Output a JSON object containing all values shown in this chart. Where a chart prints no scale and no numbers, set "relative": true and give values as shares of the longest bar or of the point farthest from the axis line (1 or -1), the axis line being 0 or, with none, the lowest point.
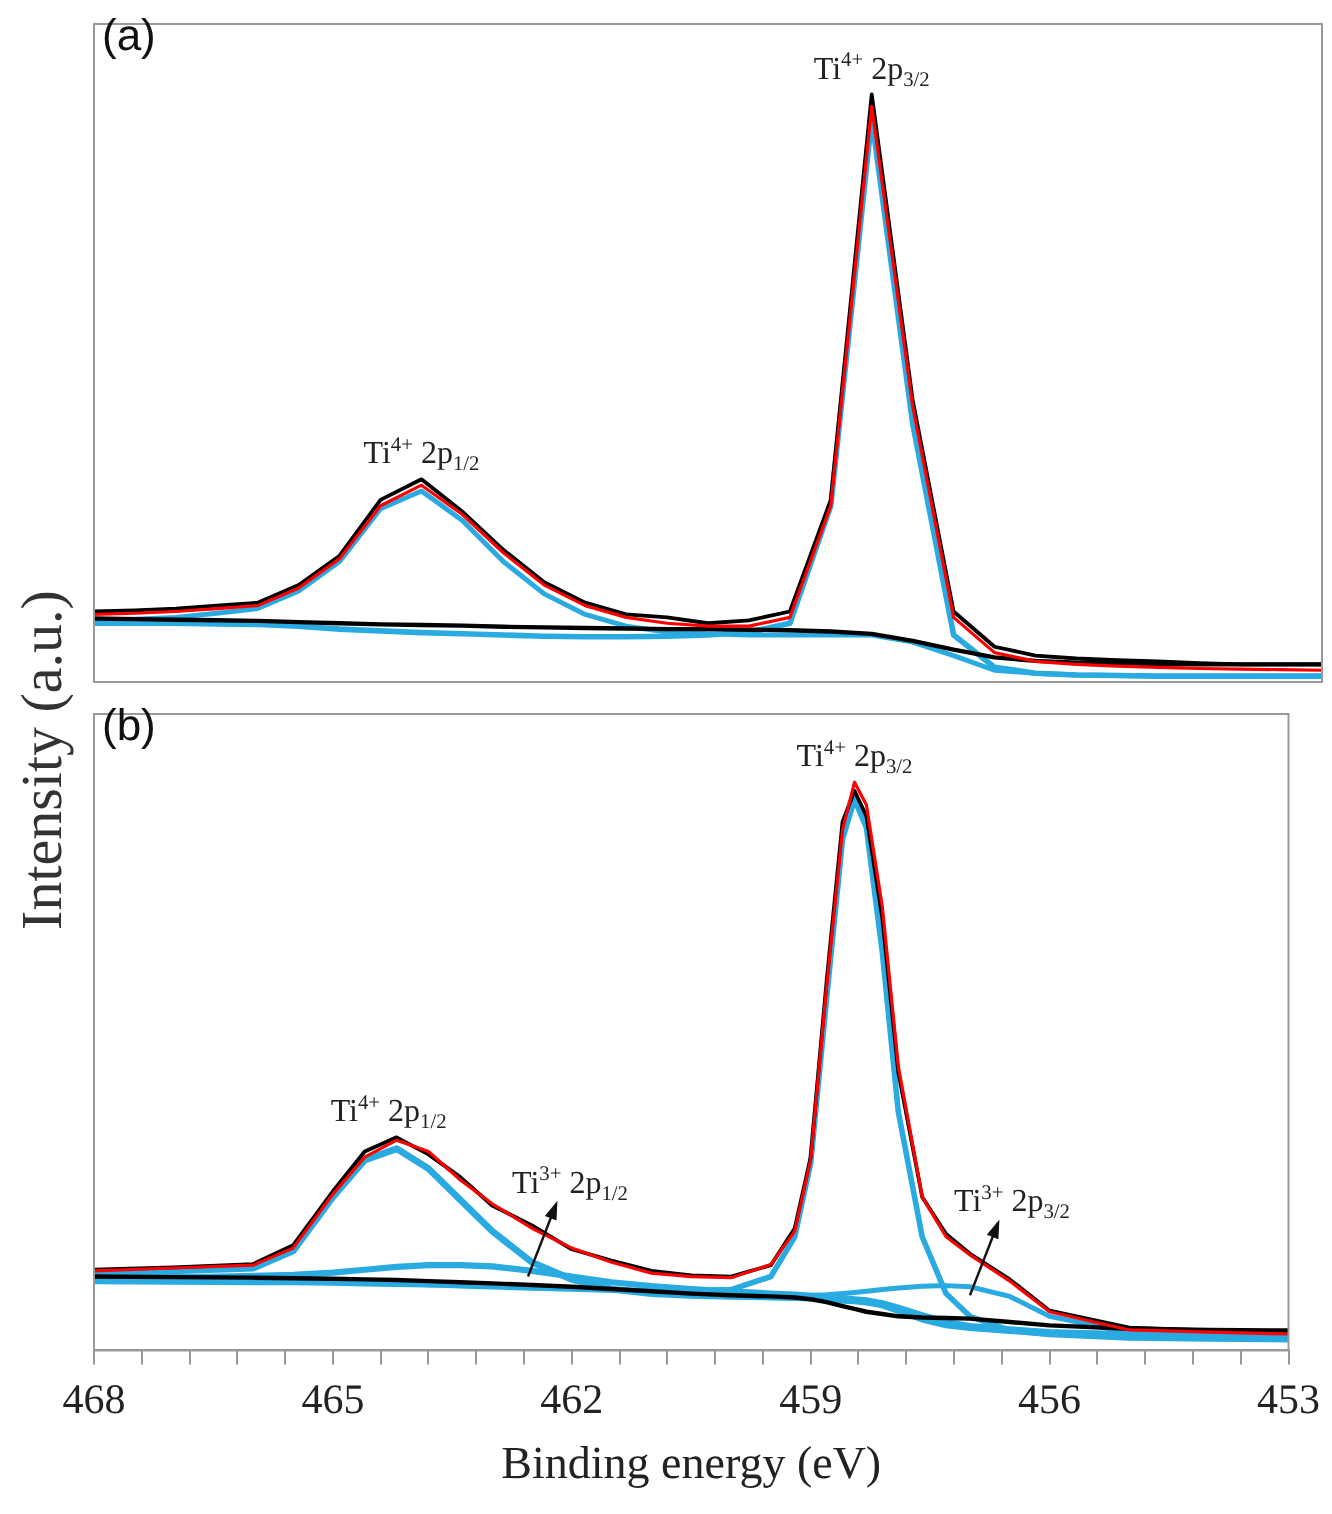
{
  "chart_data": [
    {
      "type": "line",
      "relative": true,
      "ylabel": "Intensity (a.u.)",
      "tick_labels": false,
      "grid": false,
      "legend": false,
      "marker": "none",
      "line_style": "solid",
      "categories": [
        null,
        null,
        null,
        null,
        null,
        null,
        null,
        null,
        null,
        null,
        null,
        null,
        null,
        null,
        null,
        null,
        null,
        null,
        null,
        null,
        null,
        null,
        null,
        null,
        null,
        null,
        null,
        null,
        null,
        null,
        null
      ],
      "series": [
        {
          "color": "#29abe2",
          "values": [
            0.1,
            0.1,
            0.1,
            0.099,
            0.098,
            0.095,
            0.09,
            0.087,
            0.084,
            0.082,
            0.08,
            0.078,
            0.077,
            0.077,
            0.078,
            0.08,
            0.085,
            0.1,
            0.3,
            0.96,
            0.44,
            0.08,
            0.025,
            0.015,
            0.012,
            0.011,
            0.01,
            0.01,
            0.01,
            0.01,
            0.01
          ]
        },
        {
          "color": "#29abe2",
          "values": [
            0.105,
            0.107,
            0.11,
            0.117,
            0.125,
            0.155,
            0.205,
            0.295,
            0.325,
            0.275,
            0.205,
            0.15,
            0.115,
            0.095,
            0.085,
            0.082,
            0.08,
            0.08,
            0.08,
            0.08,
            0.068,
            0.045,
            0.02,
            0.015,
            0.012,
            0.011,
            0.01,
            0.01,
            0.01,
            0.01,
            0.01
          ]
        },
        {
          "color": "#000000",
          "values": [
            0.108,
            0.107,
            0.106,
            0.105,
            0.104,
            0.102,
            0.1,
            0.098,
            0.097,
            0.096,
            0.094,
            0.093,
            0.092,
            0.091,
            0.09,
            0.09,
            0.089,
            0.088,
            0.086,
            0.082,
            0.07,
            0.055,
            0.042,
            0.036,
            0.033,
            0.032,
            0.03,
            0.03,
            0.03,
            0.03,
            0.03
          ]
        },
        {
          "color": "#000000",
          "values": [
            0.12,
            0.122,
            0.125,
            0.13,
            0.135,
            0.165,
            0.215,
            0.31,
            0.345,
            0.29,
            0.225,
            0.17,
            0.135,
            0.115,
            0.11,
            0.1,
            0.105,
            0.12,
            0.31,
            1.0,
            0.48,
            0.12,
            0.06,
            0.045,
            0.04,
            0.037,
            0.035,
            0.032,
            0.03,
            0.03,
            0.03
          ]
        },
        {
          "color": "#ff0000",
          "values": [
            0.115,
            0.117,
            0.12,
            0.125,
            0.13,
            0.16,
            0.21,
            0.3,
            0.335,
            0.285,
            0.22,
            0.165,
            0.13,
            0.11,
            0.1,
            0.095,
            0.095,
            0.11,
            0.3,
            0.98,
            0.47,
            0.11,
            0.05,
            0.035,
            0.03,
            0.027,
            0.025,
            0.023,
            0.022,
            0.021,
            0.02
          ]
        }
      ],
      "annotations": [
        "(a)",
        {
          "text": "Ti$^{4+}$ 2p$_{1/2}$",
          "y": 0.345
        },
        {
          "text": "Ti$^{4+}$ 2p$_{3/2}$",
          "y": 1.0
        }
      ]
    },
    {
      "type": "line",
      "relative": true,
      "xlabel": "Binding energy (eV)",
      "xlim": [
        468,
        453
      ],
      "tick_labels": "x",
      "grid": false,
      "legend": false,
      "marker": "none",
      "line_style": "solid",
      "xticks": [
        468,
        {
          "value": 467.4,
          "label": null
        },
        {
          "value": 466.8,
          "label": null
        },
        {
          "value": 466.2,
          "label": null
        },
        {
          "value": 465.6,
          "label": null
        },
        465,
        {
          "value": 464.4,
          "label": null
        },
        {
          "value": 463.8,
          "label": null
        },
        {
          "value": 463.2,
          "label": null
        },
        {
          "value": 462.6,
          "label": null
        },
        462,
        {
          "value": 461.4,
          "label": null
        },
        {
          "value": 460.8,
          "label": null
        },
        {
          "value": 460.2,
          "label": null
        },
        {
          "value": 459.6,
          "label": null
        },
        459,
        {
          "value": 458.4,
          "label": null
        },
        {
          "value": 457.8,
          "label": null
        },
        {
          "value": 457.2,
          "label": null
        },
        {
          "value": 456.6,
          "label": null
        },
        456,
        {
          "value": 455.4,
          "label": null
        },
        {
          "value": 454.8,
          "label": null
        },
        {
          "value": 454.2,
          "label": null
        },
        {
          "value": 453.6,
          "label": null
        },
        453
      ],
      "x": [
        468,
        467,
        466,
        465.5,
        465,
        464.6,
        464.2,
        463.8,
        463.4,
        463,
        462.5,
        462,
        461.5,
        461,
        460.5,
        460,
        459.5,
        459.2,
        459,
        458.8,
        458.6,
        458.45,
        458.3,
        458.1,
        457.9,
        457.6,
        457.3,
        457,
        456.5,
        456,
        455,
        454,
        453
      ],
      "series": [
        {
          "color": "#29abe2",
          "values": [
            0.135,
            0.14,
            0.145,
            0.175,
            0.27,
            0.335,
            0.355,
            0.32,
            0.265,
            0.21,
            0.155,
            0.125,
            0.108,
            0.1,
            0.097,
            0.095,
            0.094,
            0.093,
            0.092,
            0.09,
            0.088,
            0.087,
            0.085,
            0.08,
            0.07,
            0.055,
            0.045,
            0.04,
            0.035,
            0.03,
            0.028,
            0.027,
            0.026
          ]
        },
        {
          "color": "#29abe2",
          "values": [
            0.126,
            0.128,
            0.131,
            0.133,
            0.137,
            0.142,
            0.147,
            0.15,
            0.15,
            0.148,
            0.14,
            0.13,
            0.12,
            0.113,
            0.108,
            0.104,
            0.1,
            0.098,
            0.096,
            0.094,
            0.092,
            0.09,
            0.088,
            0.083,
            0.075,
            0.062,
            0.05,
            0.043,
            0.037,
            0.032,
            0.028,
            0.025,
            0.023
          ]
        },
        {
          "color": "#29abe2",
          "values": [
            0.133,
            0.13,
            0.126,
            0.124,
            0.122,
            0.12,
            0.118,
            0.116,
            0.114,
            0.112,
            0.11,
            0.108,
            0.106,
            0.105,
            0.105,
            0.107,
            0.13,
            0.2,
            0.33,
            0.62,
            0.9,
            0.97,
            0.92,
            0.7,
            0.42,
            0.2,
            0.1,
            0.06,
            0.035,
            0.028,
            0.022,
            0.02,
            0.019
          ]
        },
        {
          "color": "#29abe2",
          "values": [
            0.121,
            0.12,
            0.119,
            0.119,
            0.118,
            0.117,
            0.116,
            0.115,
            0.114,
            0.113,
            0.111,
            0.109,
            0.107,
            0.104,
            0.103,
            0.101,
            0.098,
            0.097,
            0.097,
            0.098,
            0.1,
            0.102,
            0.104,
            0.107,
            0.11,
            0.113,
            0.114,
            0.112,
            0.095,
            0.06,
            0.031,
            0.03,
            0.031
          ]
        },
        {
          "color": "#000000",
          "values": [
            0.13,
            0.129,
            0.128,
            0.127,
            0.126,
            0.125,
            0.124,
            0.122,
            0.12,
            0.118,
            0.115,
            0.112,
            0.108,
            0.104,
            0.1,
            0.097,
            0.095,
            0.093,
            0.09,
            0.085,
            0.078,
            0.073,
            0.068,
            0.064,
            0.06,
            0.058,
            0.057,
            0.056,
            0.05,
            0.044,
            0.038,
            0.036,
            0.035
          ]
        },
        {
          "color": "#000000",
          "values": [
            0.142,
            0.146,
            0.152,
            0.185,
            0.28,
            0.35,
            0.375,
            0.345,
            0.305,
            0.255,
            0.22,
            0.178,
            0.158,
            0.14,
            0.132,
            0.13,
            0.15,
            0.215,
            0.34,
            0.65,
            0.93,
            0.985,
            0.94,
            0.76,
            0.49,
            0.27,
            0.205,
            0.17,
            0.125,
            0.07,
            0.04,
            0.035,
            0.033
          ]
        },
        {
          "color": "#ff0000",
          "values": [
            0.14,
            0.145,
            0.15,
            0.18,
            0.275,
            0.34,
            0.37,
            0.35,
            0.3,
            0.258,
            0.215,
            0.18,
            0.155,
            0.136,
            0.13,
            0.128,
            0.151,
            0.21,
            0.336,
            0.64,
            0.916,
            1.0,
            0.96,
            0.78,
            0.5,
            0.27,
            0.2,
            0.168,
            0.122,
            0.068,
            0.036,
            0.032,
            0.029
          ]
        }
      ],
      "annotations": [
        "(b)",
        {
          "text": "Ti$^{4+}$ 2p$_{1/2}$",
          "x": 464.3,
          "y": 0.375
        },
        {
          "text": "Ti$^{3+}$ 2p$_{1/2}$",
          "x": 462.55,
          "y": 0.13
        },
        {
          "text": "Ti$^{4+}$ 2p$_{3/2}$",
          "x": 458.45,
          "y": 1.0
        },
        {
          "text": "Ti$^{3+}$ 2p$_{3/2}$",
          "x": 457.0,
          "y": 0.097
        }
      ]
    }
  ]
}
